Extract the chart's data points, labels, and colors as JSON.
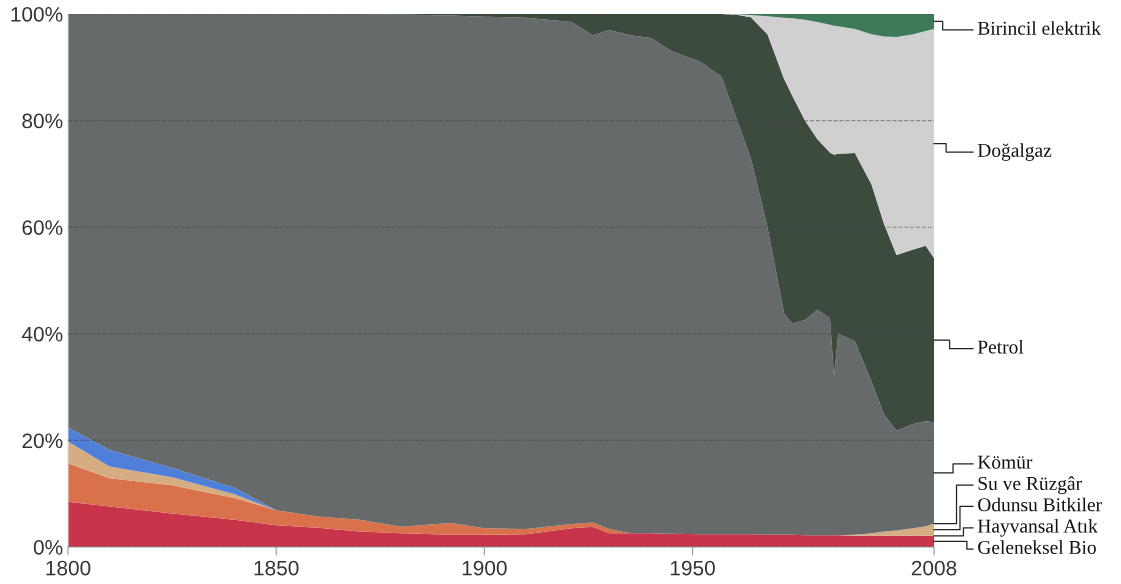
{
  "chart_data": {
    "type": "area",
    "stacked": true,
    "x": [
      1800,
      1810,
      1825,
      1840,
      1850,
      1860,
      1870,
      1880,
      1892,
      1900,
      1910,
      1921,
      1926,
      1930,
      1935,
      1940,
      1945,
      1952,
      1957,
      1961,
      1964,
      1968,
      1972,
      1974,
      1977,
      1980,
      1983,
      1984,
      1985,
      1989,
      1993,
      1996,
      1999,
      2003,
      2006,
      2008
    ],
    "series": [
      {
        "name": "Geleneksel Bio",
        "color": "#c8354a",
        "values": [
          8.5,
          7.6,
          6.3,
          5.1,
          4.1,
          3.6,
          2.9,
          2.6,
          2.3,
          2.3,
          2.4,
          3.5,
          3.8,
          2.6,
          2.6,
          2.6,
          2.5,
          2.4,
          2.4,
          2.4,
          2.4,
          2.3,
          2.3,
          2.3,
          2.2,
          2.2,
          2.2,
          2.2,
          2.2,
          2.1,
          2.1,
          2.1,
          2.1,
          2.1,
          2.1,
          2.1
        ]
      },
      {
        "name": "Hayvansal Atık",
        "color": "#d9714b",
        "values": [
          7.2,
          5.3,
          5.3,
          4.1,
          2.8,
          2.1,
          2.2,
          1.2,
          2.2,
          1.2,
          1.0,
          0.8,
          0.8,
          0.8,
          0,
          0,
          0,
          0,
          0,
          0,
          0,
          0,
          0,
          0,
          0,
          0,
          0,
          0,
          0,
          0,
          0,
          0,
          0,
          0,
          0,
          0
        ]
      },
      {
        "name": "Odunsu Bitkiler",
        "color": "#d6ad83",
        "values": [
          4.1,
          2.2,
          1.5,
          0.7,
          0,
          0,
          0,
          0,
          0,
          0,
          0,
          0,
          0,
          0,
          0,
          0,
          0,
          0,
          0,
          0,
          0,
          0,
          0,
          0,
          0,
          0,
          0,
          0,
          0,
          0.2,
          0.5,
          0.8,
          1.0,
          1.4,
          1.8,
          2.3
        ]
      },
      {
        "name": "Su ve Rüzgâr",
        "color": "#4f7fd8",
        "values": [
          2.6,
          3.1,
          1.7,
          1.2,
          0,
          0,
          0,
          0,
          0,
          0,
          0,
          0,
          0,
          0,
          0,
          0,
          0,
          0,
          0,
          0,
          0,
          0,
          0,
          0,
          0,
          0,
          0,
          0,
          0,
          0,
          0,
          0,
          0,
          0,
          0,
          0
        ]
      },
      {
        "name": "Kömür",
        "color": "#666a6b",
        "values": [
          77.6,
          81.8,
          85.2,
          88.9,
          93.1,
          94.3,
          94.9,
          96.1,
          95.2,
          96.0,
          95.9,
          94.2,
          91.4,
          93.6,
          93.4,
          92.9,
          90.5,
          88.6,
          85.8,
          77.0,
          70.6,
          57.7,
          41.5,
          39.6,
          40.4,
          42.3,
          40.7,
          29.7,
          37.8,
          36.3,
          28.4,
          21.9,
          18.7,
          19.6,
          19.7,
          19.0
        ]
      },
      {
        "name": "Petrol",
        "color": "#3d4a3e",
        "values": [
          0,
          0,
          0,
          0,
          0,
          0,
          0,
          0.1,
          0.3,
          0.5,
          0.7,
          1.5,
          4,
          3,
          4,
          4.5,
          7,
          9,
          11.8,
          20.4,
          26.4,
          36.2,
          44,
          42.7,
          37.4,
          32,
          31.1,
          41.7,
          33.8,
          35.3,
          37,
          35.8,
          33,
          32.7,
          32.9,
          30.8
        ]
      },
      {
        "name": "Doğalgaz",
        "color": "#d0d0d0",
        "values": [
          0,
          0,
          0,
          0,
          0,
          0,
          0,
          0,
          0,
          0,
          0,
          0,
          0,
          0,
          0,
          0,
          0,
          0,
          0,
          0.2,
          0.4,
          3.4,
          11.5,
          14.6,
          18.9,
          22,
          24,
          24.2,
          23.9,
          23.3,
          28.2,
          35.2,
          40.9,
          40.4,
          40.3,
          43
        ]
      },
      {
        "name": "Birincil elektrik",
        "color": "#3e7a5a",
        "values": [
          0,
          0,
          0,
          0,
          0,
          0,
          0,
          0,
          0,
          0,
          0,
          0,
          0,
          0,
          0,
          0,
          0,
          0,
          0,
          0,
          0.2,
          0.4,
          0.7,
          0.8,
          1.1,
          1.5,
          2,
          2.2,
          2.3,
          2.8,
          3.8,
          4.2,
          4.3,
          3.8,
          3.2,
          2.8
        ]
      }
    ],
    "xlim": [
      1800,
      2008
    ],
    "xticks": [
      1800,
      1850,
      1900,
      1950,
      2008
    ],
    "ylim": [
      0,
      100
    ],
    "yticks": [
      {
        "value": 0,
        "label": "0%"
      },
      {
        "value": 20,
        "label": "20%"
      },
      {
        "value": 40,
        "label": "40%"
      },
      {
        "value": 60,
        "label": "60%"
      },
      {
        "value": 80,
        "label": "80%"
      },
      {
        "value": 100,
        "label": "100%"
      }
    ],
    "grid": "y",
    "line_style": "dashed"
  }
}
